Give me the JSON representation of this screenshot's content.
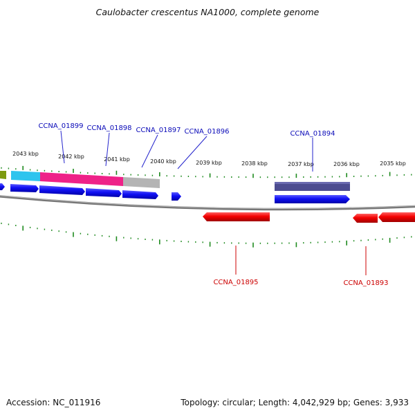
{
  "title": "Caulobacter crescentus NA1000, complete genome",
  "footer": {
    "accession": "Accession: NC_011916",
    "stats": "Topology: circular; Length: 4,042,929 bp; Genes: 3,933"
  },
  "colors": {
    "forward_gene": "#0c0cf0",
    "reverse_gene": "#f00000",
    "forward_label": "#0a0ab8",
    "reverse_label": "#cc0000",
    "tick": "#1e8a1e",
    "backbone": "#7c7c7c",
    "feature_olive": "#7c9a10",
    "feature_cyan": "#2ec4ee",
    "feature_magenta": "#ee2288",
    "feature_gray": "#b4b4b4",
    "feature_purple": "#4c4c90"
  },
  "kbp_labels": [
    "2043 kbp",
    "2042 kbp",
    "2041 kbp",
    "2040 kbp",
    "2039 kbp",
    "2038 kbp",
    "2037 kbp",
    "2036 kbp",
    "2035 kbp"
  ],
  "gene_labels": {
    "forward": [
      "CCNA_01899",
      "CCNA_01898",
      "CCNA_01897",
      "CCNA_01896",
      "CCNA_01894"
    ],
    "reverse": [
      "CCNA_01895",
      "CCNA_01893"
    ]
  }
}
